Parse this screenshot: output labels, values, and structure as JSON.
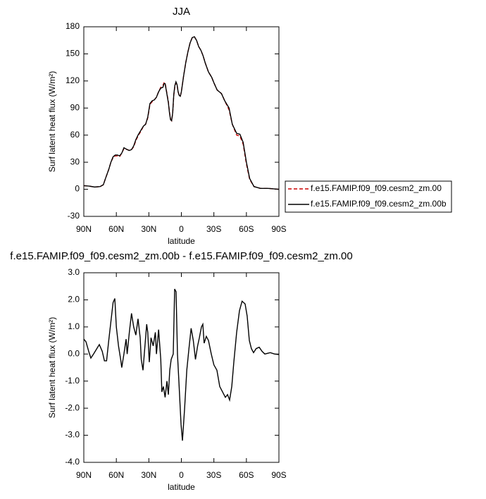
{
  "chart_data": [
    {
      "type": "line",
      "title": "JJA",
      "xlabel": "latitude",
      "ylabel": "Surf latent heat flux (W/m²)",
      "x": [
        90,
        85,
        80,
        75,
        72,
        70,
        67,
        65,
        63,
        61,
        59,
        57,
        55,
        53,
        50,
        48,
        46,
        44,
        42,
        40,
        37,
        35,
        33,
        31,
        29,
        27,
        25,
        23,
        21,
        19,
        17,
        16,
        15,
        14,
        12,
        11,
        10,
        9,
        8,
        7,
        6,
        5,
        4,
        3,
        2,
        1,
        0,
        -2,
        -4,
        -6,
        -8,
        -10,
        -12,
        -14,
        -16,
        -18,
        -20,
        -22,
        -25,
        -28,
        -30,
        -33,
        -35,
        -37,
        -40,
        -44,
        -47,
        -51,
        -54,
        -57,
        -60,
        -63,
        -67,
        -73,
        -80,
        -90
      ],
      "series": [
        {
          "name": "f.e15.FAMIP.f09_f09.cesm2_zm.00",
          "color": "#cc0000",
          "dash": "dashed",
          "values": [
            4,
            3.5,
            2.5,
            3,
            5,
            12,
            22,
            30,
            35,
            37,
            37,
            36,
            40,
            45,
            44,
            43,
            44,
            47,
            54,
            59,
            65,
            70,
            72,
            79,
            94,
            97,
            99,
            102,
            108,
            113,
            115,
            118,
            118,
            111,
            97,
            86,
            78,
            76,
            84,
            104,
            114,
            118,
            116,
            108,
            104,
            103,
            108,
            125,
            140,
            152,
            162,
            168,
            169,
            165,
            158,
            154,
            148,
            140,
            130,
            124,
            118,
            110,
            108,
            106,
            98,
            88,
            72,
            60,
            59,
            50,
            28,
            11,
            3,
            1,
            1,
            0
          ]
        },
        {
          "name": "f.e15.FAMIP.f09_f09.cesm2_zm.00b",
          "color": "#000000",
          "dash": "solid",
          "values": [
            4,
            3.5,
            2.5,
            3,
            5,
            12,
            22,
            30,
            36,
            38,
            38,
            37,
            40,
            46,
            44,
            43,
            44,
            48,
            55,
            60,
            66,
            70,
            72,
            80,
            95,
            98,
            99,
            102,
            108,
            112,
            113,
            117,
            117,
            110,
            96,
            85,
            77,
            76,
            85,
            105,
            115,
            119,
            116,
            108,
            104,
            103,
            108,
            125,
            140,
            152,
            162,
            168,
            169,
            165,
            158,
            154,
            148,
            140,
            130,
            124,
            118,
            110,
            108,
            106,
            98,
            90,
            72,
            62,
            61,
            52,
            30,
            12,
            3,
            1,
            1,
            0
          ]
        }
      ],
      "xlim": [
        90,
        -90
      ],
      "xticks": [
        {
          "value": 90,
          "label": "90N"
        },
        {
          "value": 60,
          "label": "60N"
        },
        {
          "value": 30,
          "label": "30N"
        },
        0,
        {
          "value": -30,
          "label": "30S"
        },
        {
          "value": -60,
          "label": "60S"
        },
        {
          "value": -90,
          "label": "90S"
        }
      ],
      "ylim": [
        -30,
        180
      ],
      "yticks": [
        -30,
        0,
        30,
        60,
        90,
        120,
        150,
        180
      ],
      "legend": "right"
    },
    {
      "type": "line",
      "title": "f.e15.FAMIP.f09_f09.cesm2_zm.00b - f.e15.FAMIP.f09_f09.cesm2_zm.00",
      "xlabel": "latitude",
      "ylabel": "Surf latent heat flux (W/m²)",
      "x": [
        90,
        88,
        85.5,
        83.5,
        81,
        78,
        75.7,
        73,
        71,
        69,
        67,
        65,
        63,
        61.4,
        60,
        58,
        56,
        55,
        53,
        51,
        50,
        48,
        46,
        44,
        42,
        40,
        38,
        37,
        35.4,
        34,
        32,
        31,
        29.6,
        28,
        26,
        24,
        23,
        21,
        19,
        18,
        16.6,
        15,
        13.3,
        12,
        10.7,
        9.4,
        7.5,
        6.2,
        4.9,
        3.6,
        2.3,
        0.3,
        -1,
        -3,
        -5,
        -7,
        -9,
        -11,
        -13,
        -15,
        -16.6,
        -18.5,
        -19.8,
        -21,
        -23,
        -25,
        -27.6,
        -30,
        -32.8,
        -35.4,
        -38,
        -40.6,
        -42.6,
        -44.5,
        -46.5,
        -48.4,
        -51,
        -53.6,
        -56,
        -58.8,
        -60.7,
        -62.7,
        -64.6,
        -66.6,
        -69,
        -71.8,
        -74.4,
        -77,
        -82,
        -86,
        -90
      ],
      "series": [
        {
          "color": "#000000",
          "dash": "solid",
          "values": [
            0.55,
            0.45,
            0.1,
            -0.15,
            0,
            0.2,
            0.35,
            0.1,
            -0.25,
            -0.25,
            0.5,
            1.2,
            1.9,
            2.05,
            1.0,
            0.3,
            -0.2,
            -0.5,
            0,
            0.55,
            0,
            0.8,
            1.5,
            1.0,
            0.7,
            1.3,
            0.6,
            -0.2,
            -0.6,
            0.1,
            1.1,
            0.8,
            -0.3,
            0.6,
            0.3,
            0.8,
            0,
            0.9,
            -0.2,
            -1.4,
            -1.2,
            -1.6,
            -1.0,
            -1.5,
            -0.6,
            -0.2,
            0,
            2.4,
            2.3,
            0,
            -1.0,
            -2.6,
            -3.2,
            -2.0,
            -0.6,
            0.2,
            0.95,
            0.5,
            -0.2,
            0.3,
            0.6,
            1.0,
            1.1,
            0.4,
            0.65,
            0.5,
            0,
            -0.4,
            -0.6,
            -1.2,
            -1.4,
            -1.6,
            -1.5,
            -1.7,
            -1.2,
            -0.3,
            0.8,
            1.6,
            1.95,
            1.85,
            1.4,
            0.5,
            0.2,
            0.05,
            0.2,
            0.25,
            0.1,
            0,
            0.05,
            0,
            -0.02
          ]
        }
      ],
      "xlim": [
        90,
        -90
      ],
      "xticks": [
        {
          "value": 90,
          "label": "90N"
        },
        {
          "value": 60,
          "label": "60N"
        },
        {
          "value": 30,
          "label": "30N"
        },
        0,
        {
          "value": -30,
          "label": "30S"
        },
        {
          "value": -60,
          "label": "60S"
        },
        {
          "value": -90,
          "label": "90S"
        }
      ],
      "ylim": [
        -4,
        3
      ],
      "yticks": [
        {
          "value": -4,
          "label": "-4.0"
        },
        {
          "value": -3,
          "label": "-3.0"
        },
        {
          "value": -2,
          "label": "-2.0"
        },
        {
          "value": -1,
          "label": "-1.0"
        },
        {
          "value": 0,
          "label": "0.0"
        },
        {
          "value": 1,
          "label": "1.0"
        },
        {
          "value": 2,
          "label": "2.0"
        },
        {
          "value": 3,
          "label": "3.0"
        }
      ]
    }
  ]
}
